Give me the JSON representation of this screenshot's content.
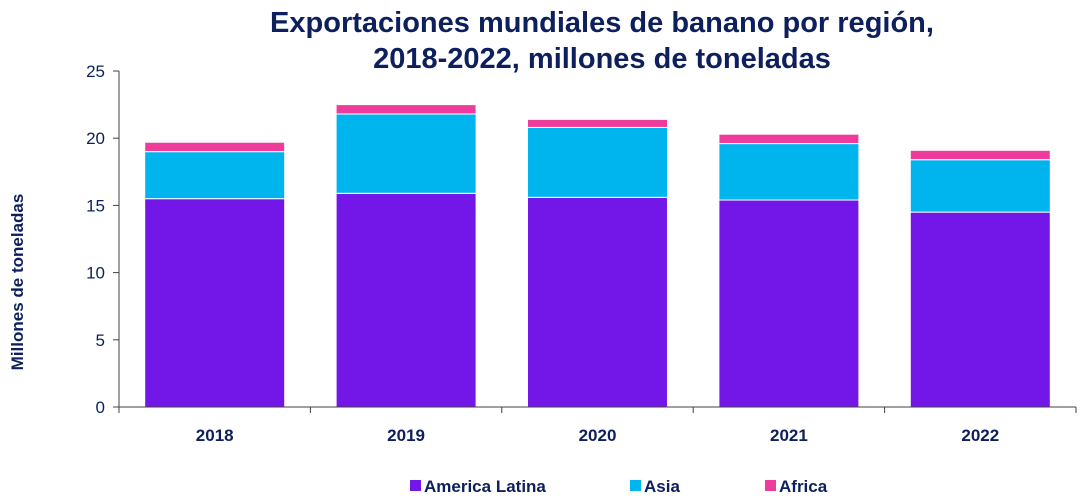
{
  "chart_data": {
    "type": "bar",
    "stacked": true,
    "title_lines": [
      "Exportaciones mundiales de banano por región,",
      "2018-2022, millones de toneladas"
    ],
    "ylabel": "Millones de toneladas",
    "xlabel": "",
    "ylim": [
      0,
      25
    ],
    "yticks": [
      0,
      5,
      10,
      15,
      20,
      25
    ],
    "categories": [
      "2018",
      "2019",
      "2020",
      "2021",
      "2022"
    ],
    "series": [
      {
        "name": "America Latina",
        "color": "#7316e8",
        "values": [
          15.5,
          15.9,
          15.6,
          15.4,
          14.5
        ]
      },
      {
        "name": "Asia",
        "color": "#00b4ee",
        "values": [
          3.5,
          5.9,
          5.2,
          4.2,
          3.9
        ]
      },
      {
        "name": "Africa",
        "color": "#ee3c9c",
        "values": [
          0.7,
          0.7,
          0.6,
          0.7,
          0.7
        ]
      }
    ],
    "grid": false,
    "legend_position": "bottom"
  }
}
